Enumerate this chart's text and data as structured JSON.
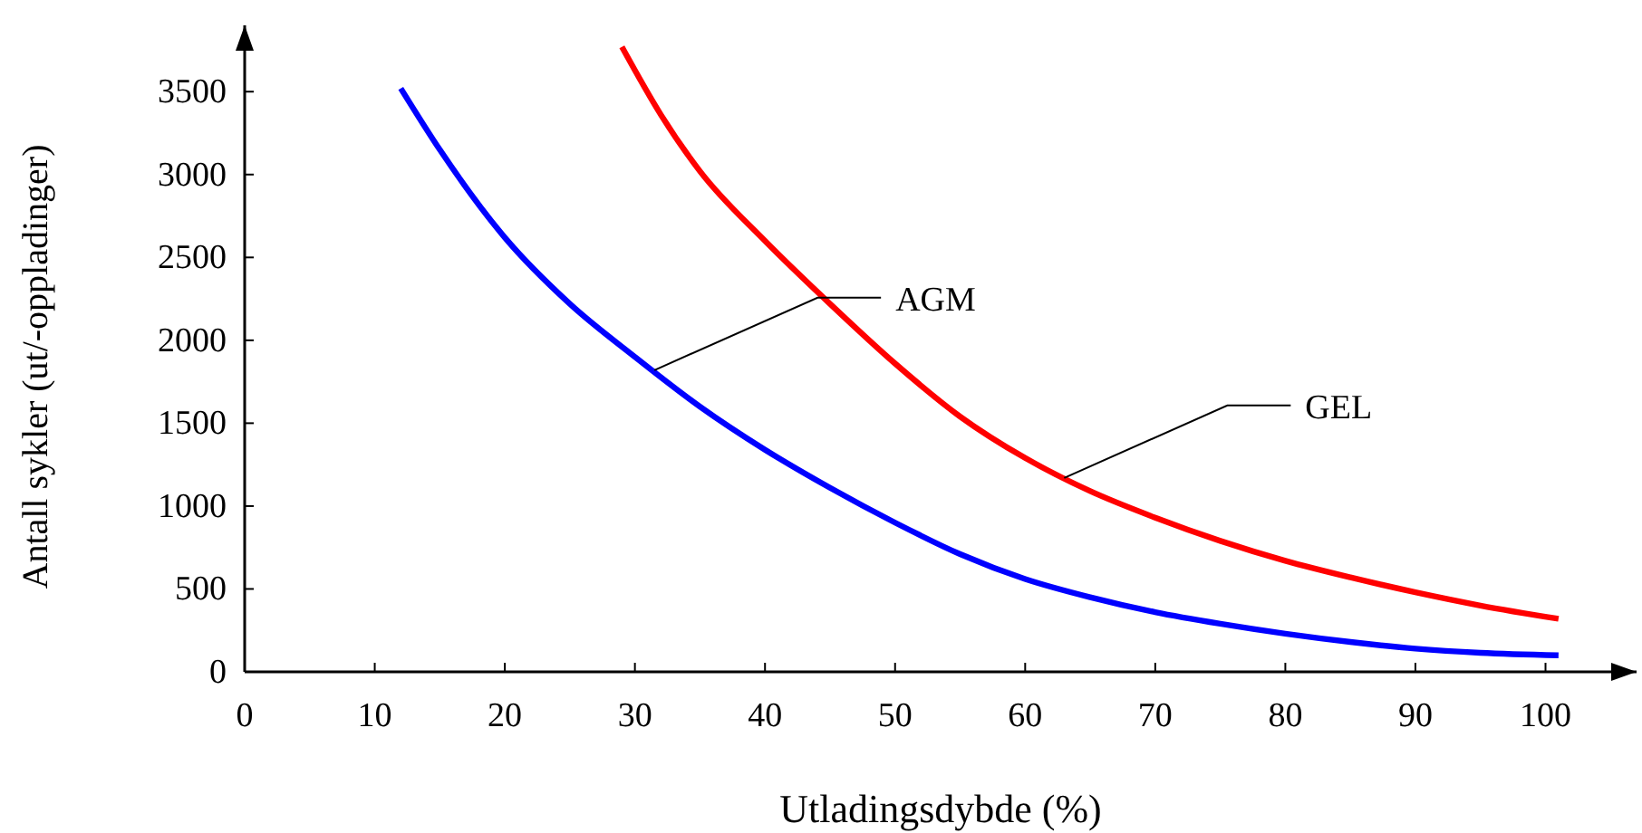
{
  "chart_data": {
    "type": "line",
    "xlabel": "Utladingsdybde (%)",
    "ylabel": "Antall sykler (ut/-oppladinger)",
    "xlim": [
      0,
      107
    ],
    "ylim": [
      0,
      3900
    ],
    "xticks": [
      0,
      10,
      20,
      30,
      40,
      50,
      60,
      70,
      80,
      90,
      100
    ],
    "yticks": [
      0,
      500,
      1000,
      1500,
      2000,
      2500,
      3000,
      3500
    ],
    "grid": false,
    "series": [
      {
        "color": "#0000ff",
        "x": [
          12,
          15,
          20,
          25,
          30,
          35,
          40,
          45,
          50,
          55,
          60,
          65,
          70,
          75,
          80,
          85,
          90,
          95,
          101
        ],
        "values": [
          3520,
          3150,
          2620,
          2220,
          1900,
          1600,
          1340,
          1110,
          900,
          710,
          560,
          450,
          360,
          290,
          230,
          180,
          140,
          115,
          100
        ]
      },
      {
        "color": "#ff0000",
        "x": [
          29,
          32,
          35,
          40,
          45,
          50,
          55,
          60,
          65,
          70,
          75,
          80,
          85,
          90,
          95,
          101
        ],
        "values": [
          3770,
          3360,
          3020,
          2600,
          2220,
          1860,
          1540,
          1290,
          1090,
          930,
          790,
          670,
          570,
          480,
          400,
          320
        ]
      }
    ],
    "annotations": [
      {
        "text": "AGM",
        "x": 31.5,
        "y": 1820
      },
      {
        "text": "GEL",
        "x": 63,
        "y": 1170
      }
    ]
  }
}
